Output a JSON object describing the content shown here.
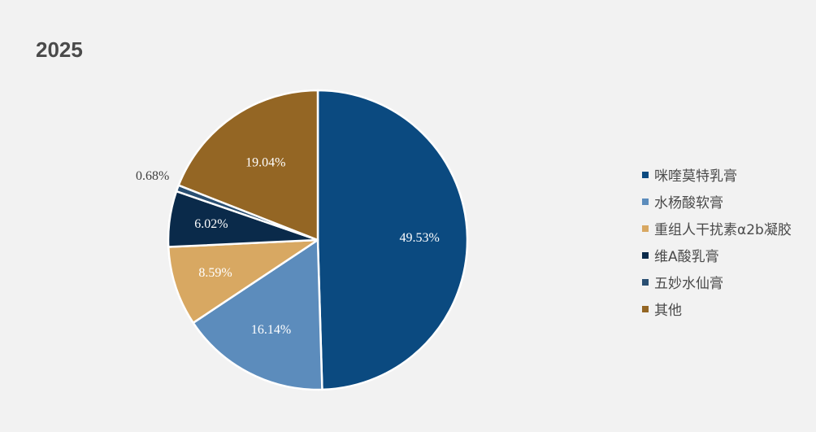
{
  "title": "2025",
  "chart_data": {
    "type": "pie",
    "title": "2025",
    "categories": [
      "咪喹莫特乳膏",
      "水杨酸软膏",
      "重组人干扰素α2b凝胶",
      "维A酸乳膏",
      "五妙水仙膏",
      "其他"
    ],
    "values": [
      49.53,
      16.14,
      8.59,
      6.02,
      0.68,
      19.04
    ],
    "labels": [
      "49.53%",
      "16.14%",
      "8.59%",
      "6.02%",
      "0.68%",
      "19.04%"
    ],
    "colors": [
      "#0b4a80",
      "#5c8cbc",
      "#d8a862",
      "#0a2a4a",
      "#2a4f72",
      "#946624"
    ],
    "label_colors": [
      "#ffffff",
      "#ffffff",
      "#ffffff",
      "#ffffff",
      "#404040",
      "#ffffff"
    ],
    "legend_position": "right"
  }
}
